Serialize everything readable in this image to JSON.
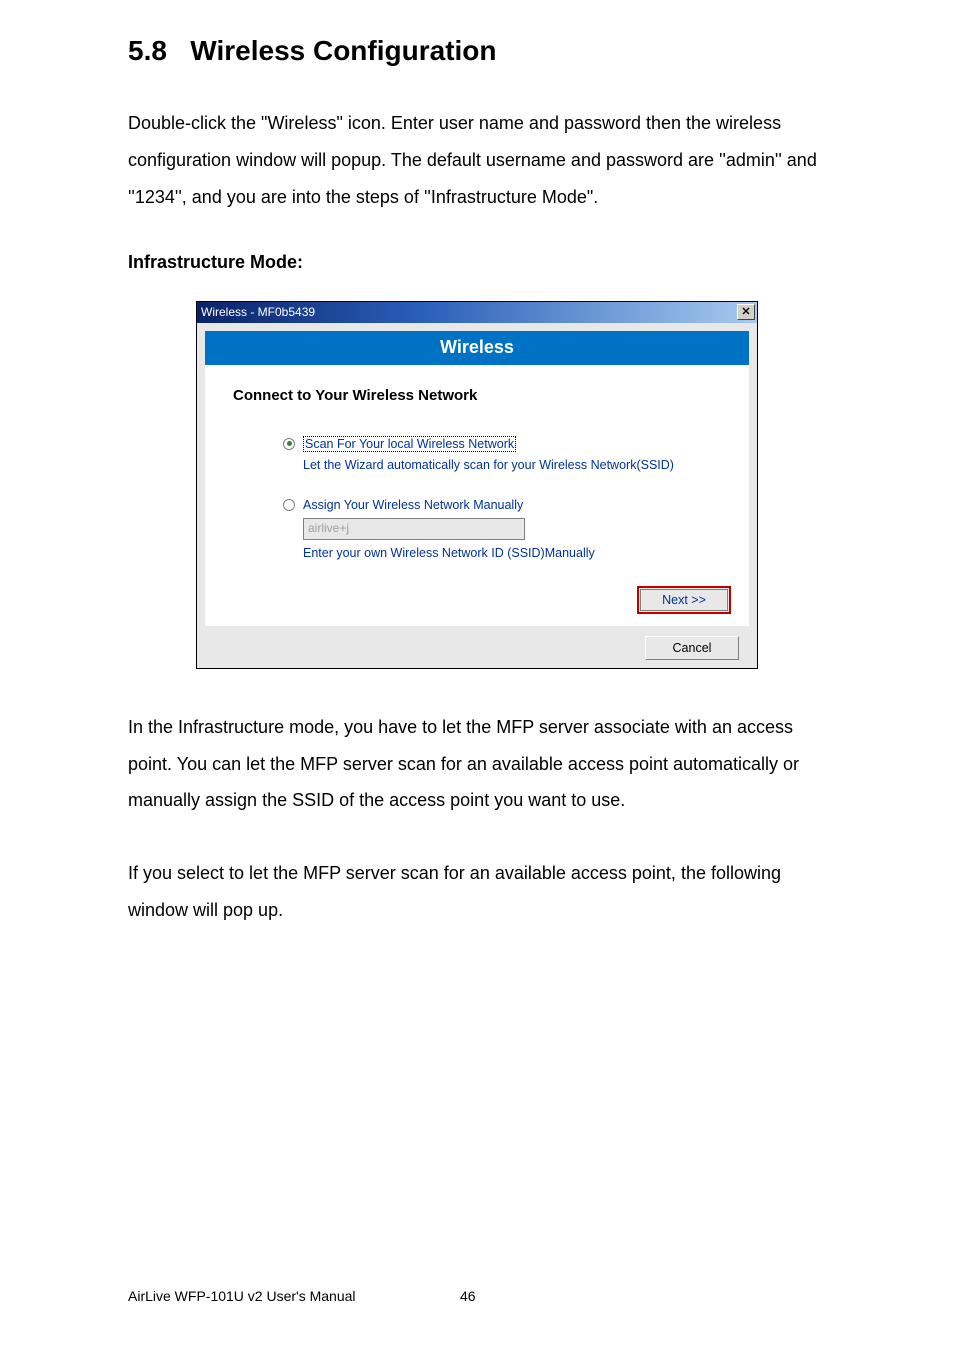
{
  "heading": {
    "number": "5.8",
    "title": "Wireless Configuration"
  },
  "intro_paragraph": "Double-click the \"Wireless\" icon. Enter user name and password then the wireless configuration window will popup. The default username and password are ''admin'' and ''1234'', and you are into the steps of ''Infrastructure Mode\".",
  "subhead": "Infrastructure Mode:",
  "dialog": {
    "title": "Wireless - MF0b5439",
    "close_glyph": "✕",
    "banner": "Wireless",
    "section_title": "Connect to Your Wireless Network",
    "option_scan": {
      "label": "Scan For Your local Wireless Network",
      "desc": "Let the Wizard automatically scan for your Wireless Network(SSID)",
      "selected": true
    },
    "option_manual": {
      "label": "Assign Your Wireless Network Manually",
      "ssid_value": "airlive+j",
      "desc": "Enter your own Wireless Network ID (SSID)Manually",
      "selected": false
    },
    "next_label": "Next >>",
    "cancel_label": "Cancel",
    "colors": {
      "banner_bg": "#0072c6",
      "link_text": "#003399",
      "next_border": "#c00000"
    }
  },
  "para2": "In the Infrastructure mode, you have to let the MFP server associate with an access point. You can let the MFP server scan for an available access point automatically or manually assign the SSID of the access point you want to use.",
  "para3": "If you select to let the MFP server scan for an available access point, the following window will pop up.",
  "footer": {
    "text": "AirLive WFP-101U v2 User's Manual",
    "page": "46"
  }
}
